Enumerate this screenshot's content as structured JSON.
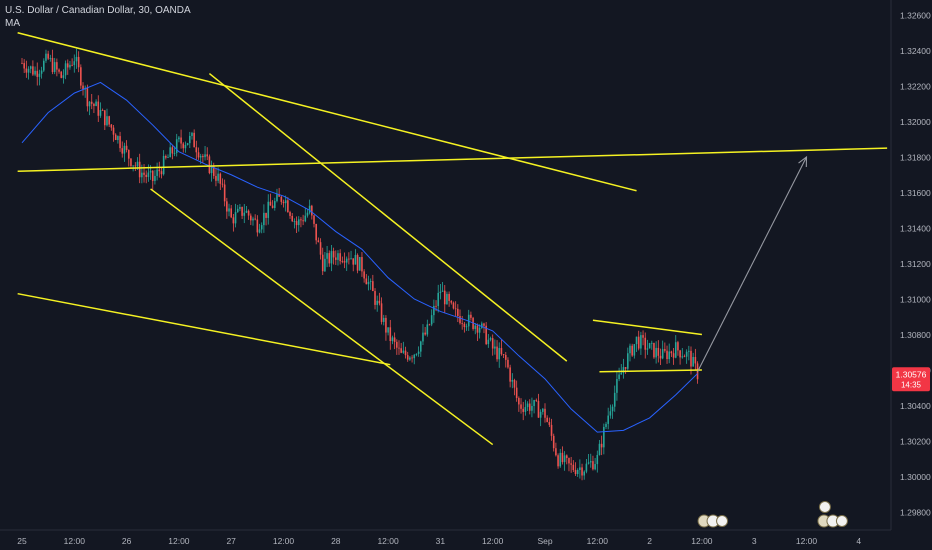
{
  "chart_data": {
    "type": "candlestick",
    "title": "U.S. Dollar / Canadian Dollar, 30, OANDA",
    "indicator": "MA",
    "current_price": "1.30576",
    "countdown": "14:35",
    "y_ticks": [
      "1.32600",
      "1.32400",
      "1.32200",
      "1.32000",
      "1.31800",
      "1.31600",
      "1.31400",
      "1.31200",
      "1.31000",
      "1.30800",
      "1.30600",
      "1.30400",
      "1.30200",
      "1.30000",
      "1.29800"
    ],
    "y_tick_values": [
      1.326,
      1.324,
      1.322,
      1.32,
      1.318,
      1.316,
      1.314,
      1.312,
      1.31,
      1.308,
      1.306,
      1.304,
      1.302,
      1.3,
      1.298
    ],
    "x_ticks": [
      "25",
      "12:00",
      "26",
      "12:00",
      "27",
      "12:00",
      "28",
      "12:00",
      "31",
      "12:00",
      "Sep",
      "12:00",
      "2",
      "12:00",
      "3",
      "12:00",
      "4"
    ],
    "x_tick_index": [
      0,
      24,
      48,
      72,
      96,
      120,
      144,
      168,
      192,
      216,
      240,
      264,
      288,
      312,
      336,
      360,
      384
    ],
    "ylim": [
      1.2975,
      1.3275
    ],
    "close_path": [
      [
        0,
        1.3233
      ],
      [
        6,
        1.3228
      ],
      [
        12,
        1.3235
      ],
      [
        18,
        1.3225
      ],
      [
        24,
        1.3236
      ],
      [
        30,
        1.3213
      ],
      [
        36,
        1.3205
      ],
      [
        42,
        1.3195
      ],
      [
        48,
        1.3182
      ],
      [
        54,
        1.3172
      ],
      [
        60,
        1.3167
      ],
      [
        66,
        1.3178
      ],
      [
        72,
        1.3188
      ],
      [
        78,
        1.319
      ],
      [
        84,
        1.3178
      ],
      [
        90,
        1.3168
      ],
      [
        96,
        1.3145
      ],
      [
        102,
        1.315
      ],
      [
        108,
        1.3142
      ],
      [
        114,
        1.3152
      ],
      [
        120,
        1.3158
      ],
      [
        126,
        1.3142
      ],
      [
        132,
        1.315
      ],
      [
        138,
        1.312
      ],
      [
        144,
        1.3125
      ],
      [
        150,
        1.3125
      ],
      [
        156,
        1.3118
      ],
      [
        162,
        1.31
      ],
      [
        168,
        1.308
      ],
      [
        174,
        1.3068
      ],
      [
        180,
        1.307
      ],
      [
        186,
        1.3082
      ],
      [
        192,
        1.3105
      ],
      [
        198,
        1.3092
      ],
      [
        204,
        1.3088
      ],
      [
        210,
        1.3085
      ],
      [
        216,
        1.3072
      ],
      [
        222,
        1.3065
      ],
      [
        228,
        1.304
      ],
      [
        234,
        1.304
      ],
      [
        240,
        1.3035
      ],
      [
        246,
        1.301
      ],
      [
        252,
        1.3005
      ],
      [
        258,
        1.3005
      ],
      [
        264,
        1.301
      ],
      [
        270,
        1.304
      ],
      [
        276,
        1.3062
      ],
      [
        282,
        1.3077
      ],
      [
        288,
        1.3072
      ],
      [
        294,
        1.3068
      ],
      [
        300,
        1.3072
      ],
      [
        306,
        1.3068
      ],
      [
        310,
        1.3058
      ]
    ],
    "ma_path": [
      [
        0,
        1.3188
      ],
      [
        12,
        1.3205
      ],
      [
        24,
        1.3216
      ],
      [
        36,
        1.3222
      ],
      [
        48,
        1.3212
      ],
      [
        60,
        1.3198
      ],
      [
        72,
        1.3183
      ],
      [
        84,
        1.3176
      ],
      [
        96,
        1.317
      ],
      [
        108,
        1.3163
      ],
      [
        120,
        1.3158
      ],
      [
        132,
        1.315
      ],
      [
        144,
        1.3138
      ],
      [
        156,
        1.3128
      ],
      [
        168,
        1.3112
      ],
      [
        180,
        1.31
      ],
      [
        192,
        1.3093
      ],
      [
        204,
        1.3088
      ],
      [
        216,
        1.3082
      ],
      [
        228,
        1.3068
      ],
      [
        240,
        1.3055
      ],
      [
        252,
        1.3038
      ],
      [
        264,
        1.3025
      ],
      [
        276,
        1.3026
      ],
      [
        288,
        1.3033
      ],
      [
        300,
        1.3046
      ],
      [
        310,
        1.3058
      ]
    ],
    "drawings": [
      {
        "name": "trendline",
        "from": [
          -2,
          1.325
        ],
        "to": [
          282,
          1.3161
        ]
      },
      {
        "name": "trendline",
        "from": [
          -2,
          1.3172
        ],
        "to": [
          397,
          1.3185
        ]
      },
      {
        "name": "trendline",
        "from": [
          86,
          1.3227
        ],
        "to": [
          250,
          1.3065
        ]
      },
      {
        "name": "trendline",
        "from": [
          59,
          1.3162
        ],
        "to": [
          216,
          1.3018
        ]
      },
      {
        "name": "trendline",
        "from": [
          -2,
          1.3103
        ],
        "to": [
          169,
          1.3063
        ]
      },
      {
        "name": "trendline",
        "from": [
          262,
          1.3088
        ],
        "to": [
          312,
          1.308
        ]
      },
      {
        "name": "trendline",
        "from": [
          265,
          1.3059
        ],
        "to": [
          312,
          1.306
        ]
      },
      {
        "name": "arrow",
        "from": [
          310,
          1.3059
        ],
        "to": [
          360,
          1.318
        ]
      }
    ],
    "colors": {
      "up": "#26a69a",
      "down": "#ef5350",
      "ma": "#2962ff",
      "lines": "#f5f222",
      "arrow": "#9598a1",
      "price": "#f23645"
    },
    "grid": false
  }
}
